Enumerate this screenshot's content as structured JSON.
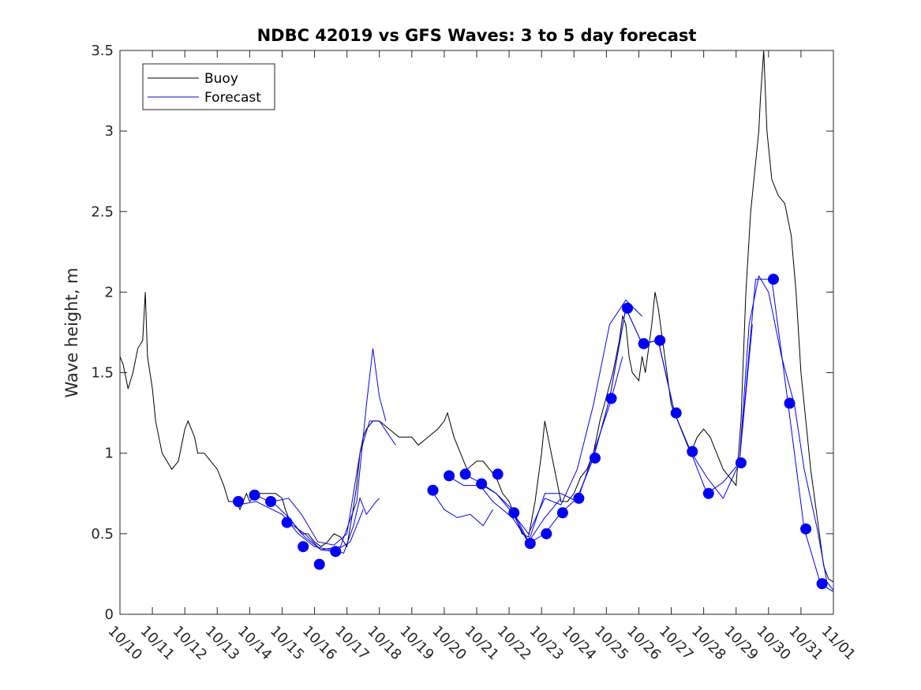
{
  "chart_data": {
    "type": "line",
    "title": "NDBC 42019 vs GFS Waves: 3 to 5 day forecast",
    "xlabel": "",
    "ylabel": "Wave height, m",
    "ylim": [
      0,
      3.5
    ],
    "xlim": [
      0,
      22
    ],
    "y_ticks": [
      "0",
      "0.5",
      "1",
      "1.5",
      "2",
      "2.5",
      "3",
      "3.5"
    ],
    "x_tick_labels": [
      "10/10",
      "10/11",
      "10/12",
      "10/13",
      "10/14",
      "10/15",
      "10/16",
      "10/17",
      "10/18",
      "10/19",
      "10/20",
      "10/21",
      "10/22",
      "10/23",
      "10/24",
      "10/25",
      "10/26",
      "10/27",
      "10/28",
      "10/29",
      "10/30",
      "10/31",
      "11/01"
    ],
    "x_units": "days since 10/10",
    "legend": {
      "position": "top-left",
      "entries": [
        "Buoy",
        "Forecast"
      ]
    },
    "colors": {
      "buoy": "#000000",
      "forecast": "#0000ff"
    },
    "series": [
      {
        "name": "Buoy",
        "color": "#000000",
        "points": [
          [
            0,
            1.6
          ],
          [
            0.1,
            1.55
          ],
          [
            0.25,
            1.4
          ],
          [
            0.4,
            1.5
          ],
          [
            0.55,
            1.65
          ],
          [
            0.7,
            1.7
          ],
          [
            0.78,
            2.0
          ],
          [
            0.85,
            1.6
          ],
          [
            1.0,
            1.4
          ],
          [
            1.1,
            1.2
          ],
          [
            1.2,
            1.1
          ],
          [
            1.3,
            1.0
          ],
          [
            1.45,
            0.95
          ],
          [
            1.6,
            0.9
          ],
          [
            1.8,
            0.95
          ],
          [
            2.0,
            1.15
          ],
          [
            2.1,
            1.2
          ],
          [
            2.3,
            1.1
          ],
          [
            2.4,
            1.0
          ],
          [
            2.6,
            1.0
          ],
          [
            2.8,
            0.95
          ],
          [
            3.0,
            0.9
          ],
          [
            3.2,
            0.8
          ],
          [
            3.35,
            0.7
          ],
          [
            3.6,
            0.7
          ],
          [
            3.7,
            0.65
          ],
          [
            3.8,
            0.7
          ],
          [
            3.9,
            0.75
          ],
          [
            4.0,
            0.7
          ],
          [
            4.2,
            0.75
          ],
          [
            4.4,
            0.75
          ],
          [
            4.6,
            0.75
          ],
          [
            4.8,
            0.75
          ],
          [
            5.0,
            0.72
          ],
          [
            5.1,
            0.65
          ],
          [
            5.2,
            0.6
          ],
          [
            5.4,
            0.55
          ],
          [
            5.6,
            0.5
          ],
          [
            5.8,
            0.5
          ],
          [
            6.0,
            0.45
          ],
          [
            6.2,
            0.42
          ],
          [
            6.4,
            0.45
          ],
          [
            6.6,
            0.5
          ],
          [
            6.8,
            0.48
          ],
          [
            7.0,
            0.42
          ],
          [
            7.15,
            0.6
          ],
          [
            7.3,
            0.8
          ],
          [
            7.4,
            1.0
          ],
          [
            7.5,
            1.1
          ],
          [
            7.6,
            1.15
          ],
          [
            7.8,
            1.2
          ],
          [
            8.0,
            1.2
          ],
          [
            8.3,
            1.15
          ],
          [
            8.6,
            1.1
          ],
          [
            8.8,
            1.1
          ],
          [
            9.0,
            1.1
          ],
          [
            9.2,
            1.05
          ],
          [
            9.5,
            1.1
          ],
          [
            9.8,
            1.15
          ],
          [
            10.0,
            1.2
          ],
          [
            10.1,
            1.25
          ],
          [
            10.3,
            1.1
          ],
          [
            10.5,
            1.0
          ],
          [
            10.7,
            0.9
          ],
          [
            11.0,
            0.95
          ],
          [
            11.2,
            0.95
          ],
          [
            11.4,
            0.9
          ],
          [
            11.6,
            0.85
          ],
          [
            11.8,
            0.75
          ],
          [
            12.0,
            0.7
          ],
          [
            12.2,
            0.6
          ],
          [
            12.4,
            0.5
          ],
          [
            12.6,
            0.48
          ],
          [
            12.8,
            0.7
          ],
          [
            13.0,
            1.0
          ],
          [
            13.1,
            1.2
          ],
          [
            13.2,
            1.1
          ],
          [
            13.4,
            0.9
          ],
          [
            13.6,
            0.7
          ],
          [
            13.8,
            0.7
          ],
          [
            14.0,
            0.75
          ],
          [
            14.2,
            0.85
          ],
          [
            14.4,
            0.9
          ],
          [
            14.6,
            1.0
          ],
          [
            14.8,
            1.2
          ],
          [
            15.0,
            1.35
          ],
          [
            15.2,
            1.5
          ],
          [
            15.4,
            1.7
          ],
          [
            15.5,
            1.85
          ],
          [
            15.6,
            1.8
          ],
          [
            15.7,
            1.6
          ],
          [
            15.8,
            1.5
          ],
          [
            16.0,
            1.45
          ],
          [
            16.1,
            1.6
          ],
          [
            16.2,
            1.5
          ],
          [
            16.4,
            1.8
          ],
          [
            16.5,
            2.0
          ],
          [
            16.6,
            1.9
          ],
          [
            16.8,
            1.6
          ],
          [
            17.0,
            1.3
          ],
          [
            17.2,
            1.2
          ],
          [
            17.4,
            1.1
          ],
          [
            17.6,
            1.0
          ],
          [
            17.8,
            1.1
          ],
          [
            18.0,
            1.15
          ],
          [
            18.2,
            1.1
          ],
          [
            18.4,
            1.0
          ],
          [
            18.6,
            0.9
          ],
          [
            18.8,
            0.85
          ],
          [
            19.0,
            0.8
          ],
          [
            19.15,
            1.2
          ],
          [
            19.3,
            2.0
          ],
          [
            19.45,
            2.5
          ],
          [
            19.6,
            2.8
          ],
          [
            19.7,
            3.0
          ],
          [
            19.75,
            3.2
          ],
          [
            19.85,
            3.5
          ],
          [
            19.95,
            3.0
          ],
          [
            20.1,
            2.7
          ],
          [
            20.3,
            2.6
          ],
          [
            20.5,
            2.55
          ],
          [
            20.7,
            2.35
          ],
          [
            20.85,
            2.0
          ],
          [
            21.0,
            1.5
          ],
          [
            21.15,
            1.2
          ],
          [
            21.3,
            0.9
          ],
          [
            21.5,
            0.6
          ],
          [
            21.7,
            0.3
          ],
          [
            21.85,
            0.22
          ],
          [
            22.0,
            0.2
          ]
        ]
      },
      {
        "name": "Forecast",
        "color": "#0000ff",
        "runs": [
          [
            [
              3.65,
              0.68
            ],
            [
              4.2,
              0.7
            ],
            [
              5.0,
              0.62
            ],
            [
              5.5,
              0.5
            ],
            [
              6.0,
              0.42
            ],
            [
              6.5,
              0.4
            ],
            [
              6.9,
              0.38
            ],
            [
              7.2,
              0.55
            ],
            [
              7.4,
              0.72
            ],
            [
              7.6,
              0.62
            ],
            [
              7.9,
              0.7
            ],
            [
              8.0,
              0.72
            ]
          ],
          [
            [
              4.2,
              0.74
            ],
            [
              4.8,
              0.68
            ],
            [
              5.2,
              0.6
            ],
            [
              5.7,
              0.48
            ],
            [
              6.2,
              0.4
            ],
            [
              6.8,
              0.42
            ],
            [
              7.3,
              0.7
            ],
            [
              7.6,
              1.3
            ],
            [
              7.8,
              1.65
            ],
            [
              8.0,
              1.35
            ],
            [
              8.2,
              1.2
            ]
          ],
          [
            [
              4.7,
              0.7
            ],
            [
              5.2,
              0.72
            ],
            [
              5.6,
              0.62
            ],
            [
              6.1,
              0.45
            ],
            [
              6.6,
              0.43
            ],
            [
              7.0,
              0.5
            ],
            [
              7.4,
              1.0
            ],
            [
              7.7,
              1.2
            ],
            [
              8.0,
              1.2
            ],
            [
              8.5,
              1.05
            ]
          ],
          [
            [
              5.2,
              0.57
            ],
            [
              5.7,
              0.5
            ],
            [
              6.2,
              0.4
            ],
            [
              6.6,
              0.39
            ],
            [
              7.1,
              0.45
            ],
            [
              7.5,
              0.65
            ]
          ],
          [
            [
              9.6,
              0.77
            ],
            [
              10.0,
              0.65
            ],
            [
              10.4,
              0.6
            ],
            [
              10.8,
              0.62
            ],
            [
              11.2,
              0.55
            ],
            [
              11.5,
              0.65
            ]
          ],
          [
            [
              10.1,
              0.86
            ],
            [
              10.6,
              0.8
            ],
            [
              11.1,
              0.8
            ],
            [
              11.5,
              0.7
            ],
            [
              12.1,
              0.6
            ],
            [
              12.6,
              0.45
            ],
            [
              13.1,
              0.6
            ],
            [
              13.6,
              0.72
            ]
          ],
          [
            [
              10.6,
              0.87
            ],
            [
              11.1,
              0.82
            ],
            [
              11.6,
              0.75
            ],
            [
              12.1,
              0.65
            ],
            [
              12.6,
              0.45
            ],
            [
              13.1,
              0.75
            ],
            [
              13.6,
              0.75
            ],
            [
              14.1,
              0.7
            ],
            [
              14.6,
              1.0
            ],
            [
              15.1,
              1.3
            ],
            [
              15.5,
              1.6
            ]
          ],
          [
            [
              11.1,
              0.81
            ],
            [
              11.6,
              0.75
            ],
            [
              12.1,
              0.63
            ],
            [
              12.6,
              0.5
            ],
            [
              13.1,
              0.72
            ],
            [
              13.6,
              0.68
            ],
            [
              14.1,
              0.9
            ],
            [
              14.6,
              1.3
            ],
            [
              15.1,
              1.8
            ],
            [
              15.6,
              1.95
            ],
            [
              16.1,
              1.85
            ]
          ],
          [
            [
              12.1,
              0.63
            ],
            [
              12.6,
              0.44
            ],
            [
              13.1,
              0.5
            ],
            [
              13.6,
              0.63
            ],
            [
              14.1,
              0.72
            ],
            [
              14.6,
              0.97
            ],
            [
              15.1,
              1.34
            ],
            [
              15.6,
              1.9
            ],
            [
              16.1,
              1.68
            ],
            [
              16.6,
              1.7
            ],
            [
              17.1,
              1.25
            ]
          ],
          [
            [
              14.1,
              0.72
            ],
            [
              14.6,
              0.97
            ],
            [
              15.1,
              1.34
            ],
            [
              15.6,
              1.9
            ],
            [
              16.1,
              1.68
            ],
            [
              16.6,
              1.7
            ],
            [
              17.1,
              1.25
            ],
            [
              17.6,
              1.01
            ],
            [
              18.1,
              0.75
            ],
            [
              18.6,
              0.82
            ],
            [
              19.1,
              0.94
            ],
            [
              19.5,
              1.8
            ]
          ],
          [
            [
              16.1,
              1.68
            ],
            [
              16.6,
              1.7
            ],
            [
              17.1,
              1.25
            ],
            [
              17.6,
              1.01
            ],
            [
              18.1,
              0.85
            ],
            [
              18.6,
              0.72
            ],
            [
              19.1,
              0.94
            ],
            [
              19.4,
              1.8
            ],
            [
              19.7,
              2.1
            ],
            [
              20.0,
              2.0
            ],
            [
              20.4,
              1.6
            ],
            [
              20.8,
              1.3
            ],
            [
              21.1,
              0.9
            ],
            [
              21.5,
              0.53
            ],
            [
              21.8,
              0.2
            ],
            [
              22.0,
              0.15
            ]
          ],
          [
            [
              19.1,
              0.94
            ],
            [
              19.6,
              2.08
            ],
            [
              20.1,
              2.08
            ],
            [
              20.6,
              1.31
            ],
            [
              21.1,
              0.53
            ],
            [
              21.6,
              0.19
            ],
            [
              22.0,
              0.14
            ]
          ]
        ],
        "markers": [
          [
            3.65,
            0.7
          ],
          [
            4.15,
            0.74
          ],
          [
            4.65,
            0.7
          ],
          [
            5.15,
            0.57
          ],
          [
            5.65,
            0.42
          ],
          [
            6.15,
            0.31
          ],
          [
            6.65,
            0.39
          ],
          [
            9.65,
            0.77
          ],
          [
            10.15,
            0.86
          ],
          [
            10.65,
            0.87
          ],
          [
            11.15,
            0.81
          ],
          [
            11.65,
            0.87
          ],
          [
            12.15,
            0.63
          ],
          [
            12.65,
            0.44
          ],
          [
            13.15,
            0.5
          ],
          [
            13.65,
            0.63
          ],
          [
            14.15,
            0.72
          ],
          [
            14.65,
            0.97
          ],
          [
            15.15,
            1.34
          ],
          [
            15.65,
            1.9
          ],
          [
            16.15,
            1.68
          ],
          [
            16.65,
            1.7
          ],
          [
            17.15,
            1.25
          ],
          [
            17.65,
            1.01
          ],
          [
            18.15,
            0.75
          ],
          [
            19.15,
            0.94
          ],
          [
            20.15,
            2.08
          ],
          [
            20.65,
            1.31
          ],
          [
            21.15,
            0.53
          ],
          [
            21.65,
            0.19
          ]
        ]
      }
    ]
  }
}
